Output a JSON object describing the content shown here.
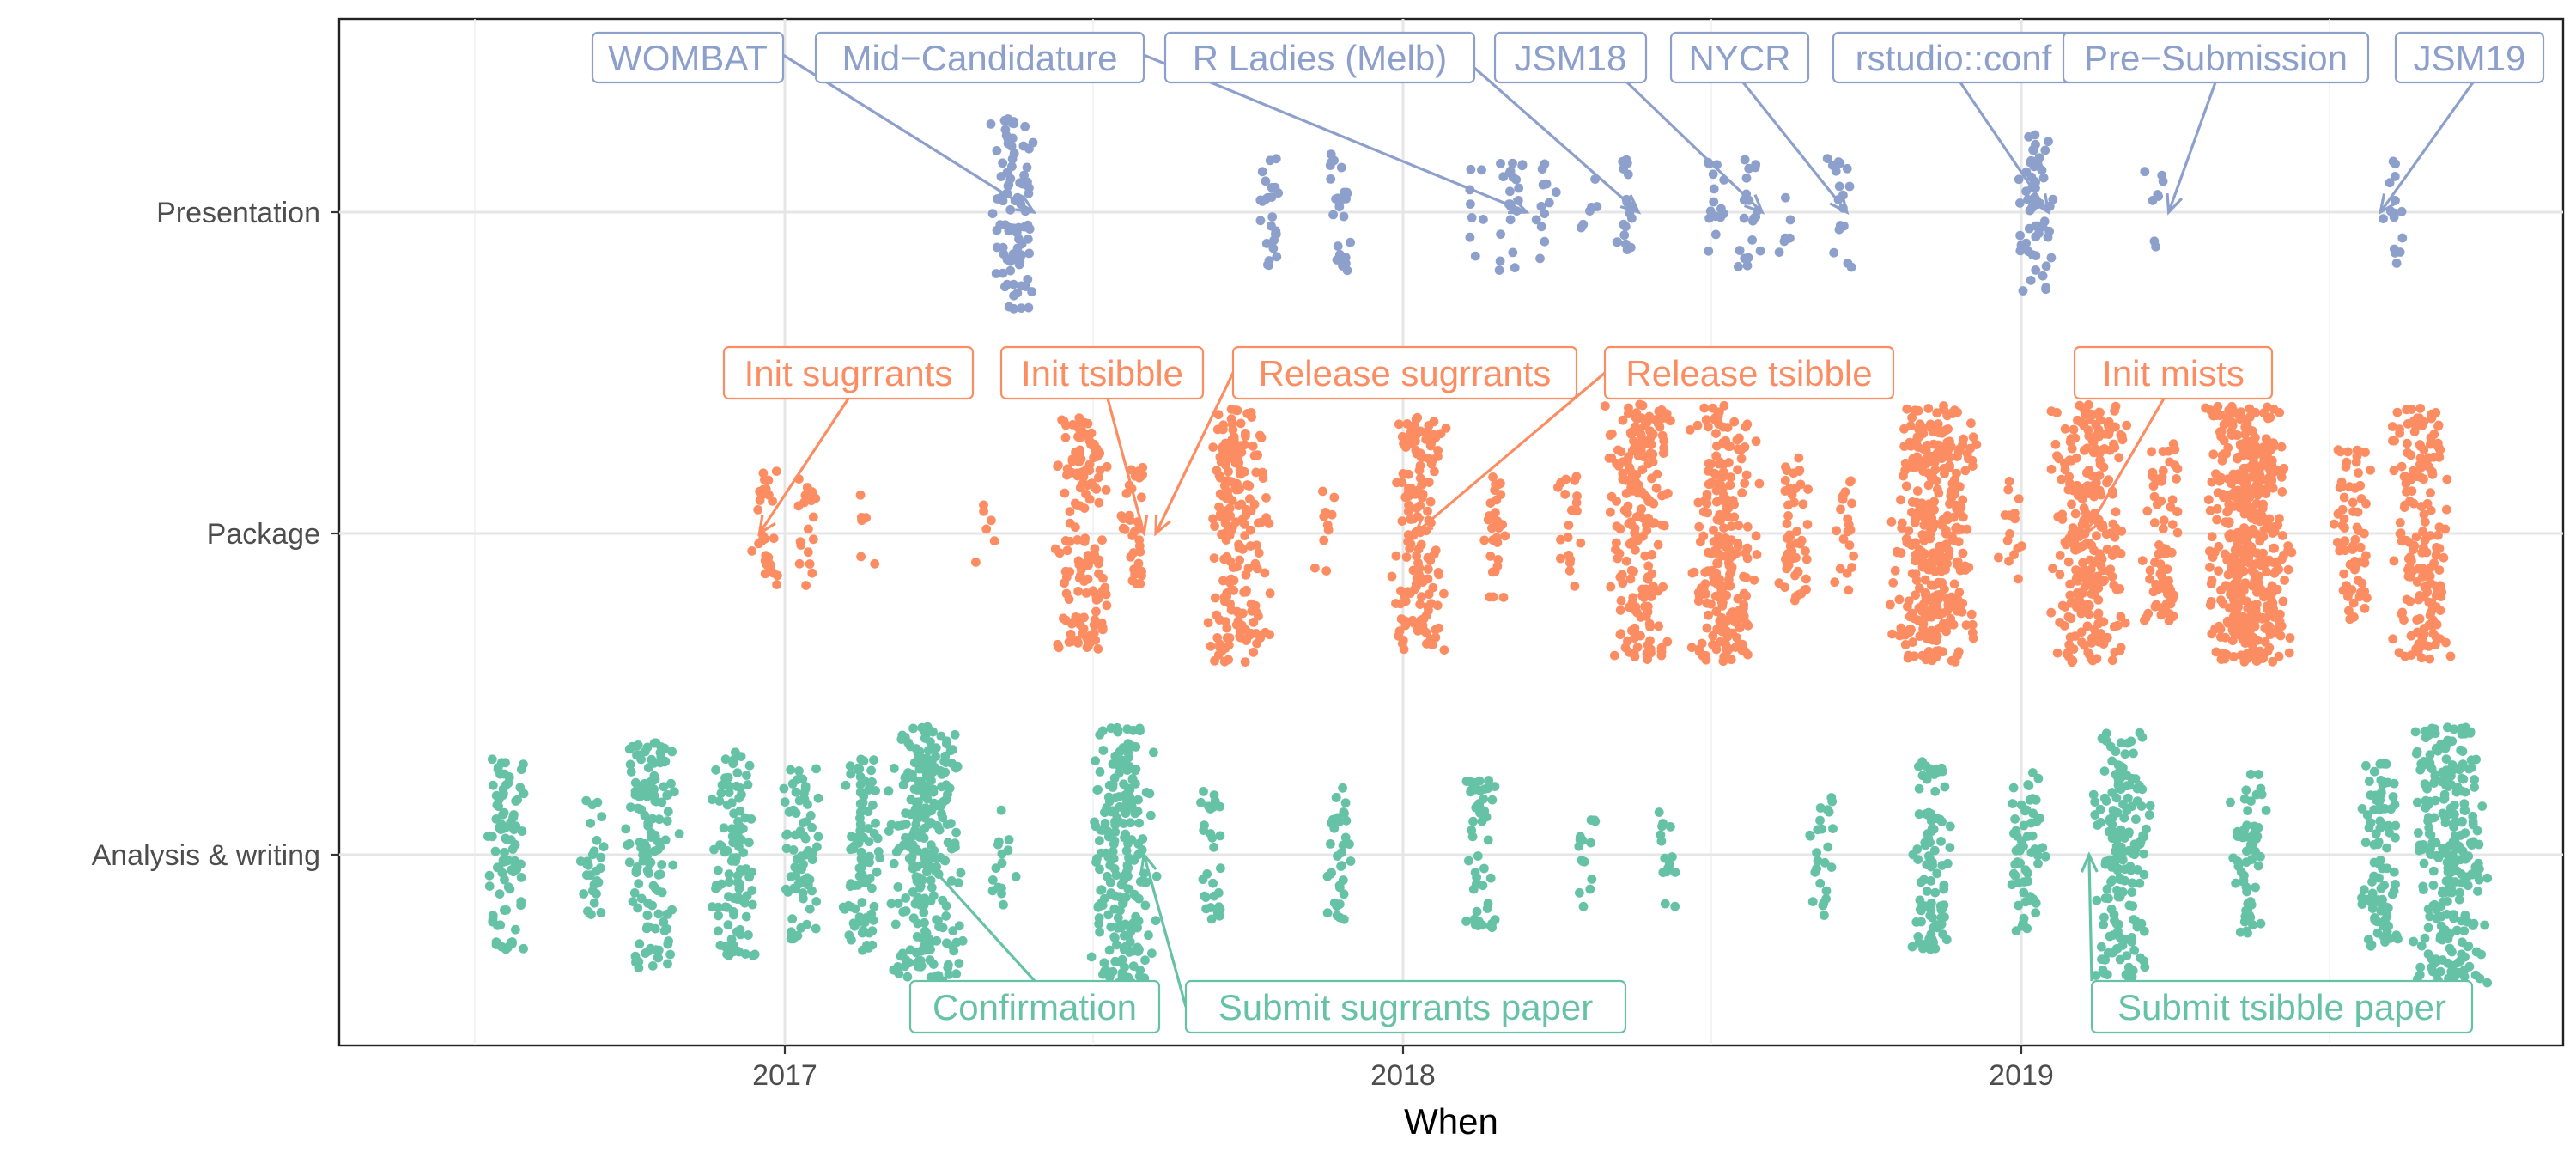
{
  "chart_data": {
    "type": "scatter",
    "xlabel": "When",
    "x_ticks": [
      "2017",
      "2018",
      "2019"
    ],
    "xlim": [
      "2016-04-15",
      "2019-10-15"
    ],
    "categories": [
      "Presentation",
      "Package",
      "Analysis & writing"
    ],
    "grid": true,
    "legend": "none",
    "series": [
      {
        "category": "Presentation",
        "color": "#8DA0CB",
        "clusters": [
          {
            "date": "2017-05-15",
            "count": 95
          },
          {
            "date": "2017-10-15",
            "count": 25
          },
          {
            "date": "2017-11-25",
            "count": 25
          },
          {
            "date": "2018-02-10",
            "count": 8
          },
          {
            "date": "2018-03-05",
            "count": 22
          },
          {
            "date": "2018-03-25",
            "count": 12
          },
          {
            "date": "2018-04-20",
            "count": 6
          },
          {
            "date": "2018-05-15",
            "count": 18
          },
          {
            "date": "2018-07-05",
            "count": 15
          },
          {
            "date": "2018-07-25",
            "count": 20
          },
          {
            "date": "2018-08-15",
            "count": 6
          },
          {
            "date": "2018-09-15",
            "count": 18
          },
          {
            "date": "2019-01-10",
            "count": 60
          },
          {
            "date": "2019-03-20",
            "count": 8
          },
          {
            "date": "2019-08-10",
            "count": 15
          }
        ]
      },
      {
        "category": "Package",
        "color": "#FC8D62",
        "clusters": [
          {
            "date": "2016-12-20",
            "count": 28
          },
          {
            "date": "2017-01-15",
            "count": 18
          },
          {
            "date": "2017-02-20",
            "count": 6
          },
          {
            "date": "2017-05-01",
            "count": 6
          },
          {
            "date": "2017-06-25",
            "count": 150
          },
          {
            "date": "2017-07-25",
            "count": 35
          },
          {
            "date": "2017-09-25",
            "count": 200
          },
          {
            "date": "2017-11-15",
            "count": 10
          },
          {
            "date": "2018-01-10",
            "count": 150
          },
          {
            "date": "2018-02-25",
            "count": 30
          },
          {
            "date": "2018-04-10",
            "count": 20
          },
          {
            "date": "2018-05-20",
            "count": 200
          },
          {
            "date": "2018-07-10",
            "count": 220
          },
          {
            "date": "2018-08-20",
            "count": 50
          },
          {
            "date": "2018-09-20",
            "count": 20
          },
          {
            "date": "2018-11-10",
            "count": 350
          },
          {
            "date": "2018-12-25",
            "count": 15
          },
          {
            "date": "2019-02-10",
            "count": 260
          },
          {
            "date": "2019-03-25",
            "count": 80
          },
          {
            "date": "2019-05-15",
            "count": 450
          },
          {
            "date": "2019-07-15",
            "count": 70
          },
          {
            "date": "2019-08-25",
            "count": 180
          }
        ]
      },
      {
        "category": "Analysis & writing",
        "color": "#66C2A5",
        "clusters": [
          {
            "date": "2016-07-20",
            "count": 90
          },
          {
            "date": "2016-09-10",
            "count": 30
          },
          {
            "date": "2016-10-15",
            "count": 140
          },
          {
            "date": "2016-12-01",
            "count": 110
          },
          {
            "date": "2017-01-10",
            "count": 70
          },
          {
            "date": "2017-02-15",
            "count": 90
          },
          {
            "date": "2017-03-25",
            "count": 260
          },
          {
            "date": "2017-05-10",
            "count": 15
          },
          {
            "date": "2017-07-20",
            "count": 220
          },
          {
            "date": "2017-09-10",
            "count": 30
          },
          {
            "date": "2017-11-25",
            "count": 35
          },
          {
            "date": "2018-02-15",
            "count": 50
          },
          {
            "date": "2018-04-20",
            "count": 15
          },
          {
            "date": "2018-06-05",
            "count": 15
          },
          {
            "date": "2018-09-05",
            "count": 25
          },
          {
            "date": "2018-11-10",
            "count": 90
          },
          {
            "date": "2019-01-05",
            "count": 60
          },
          {
            "date": "2019-03-01",
            "count": 170
          },
          {
            "date": "2019-05-15",
            "count": 60
          },
          {
            "date": "2019-08-01",
            "count": 90
          },
          {
            "date": "2019-09-10",
            "count": 250
          }
        ]
      }
    ],
    "annotations": [
      {
        "category": "Presentation",
        "label": "WOMBAT",
        "date": "2017-05-28"
      },
      {
        "category": "Presentation",
        "label": "Mid−Candidature",
        "date": "2018-03-15"
      },
      {
        "category": "Presentation",
        "label": "R Ladies (Melb)",
        "date": "2018-05-20"
      },
      {
        "category": "Presentation",
        "label": "JSM18",
        "date": "2018-08-01"
      },
      {
        "category": "Presentation",
        "label": "NYCR",
        "date": "2018-09-20"
      },
      {
        "category": "Presentation",
        "label": "rstudio::conf",
        "date": "2019-01-17"
      },
      {
        "category": "Presentation",
        "label": "Pre−Submission",
        "date": "2019-03-29"
      },
      {
        "category": "Presentation",
        "label": "JSM19",
        "date": "2019-08-01"
      },
      {
        "category": "Package",
        "label": "Init sugrrants",
        "date": "2016-12-17"
      },
      {
        "category": "Package",
        "label": "Init tsibble",
        "date": "2017-08-01"
      },
      {
        "category": "Package",
        "label": "Release sugrrants",
        "date": "2017-08-08"
      },
      {
        "category": "Package",
        "label": "Release tsibble",
        "date": "2018-01-08"
      },
      {
        "category": "Package",
        "label": "Init mists",
        "date": "2019-02-08"
      },
      {
        "category": "Analysis & writing",
        "label": "Confirmation",
        "date": "2017-03-22"
      },
      {
        "category": "Analysis & writing",
        "label": "Submit sugrrants paper",
        "date": "2017-08-01"
      },
      {
        "category": "Analysis & writing",
        "label": "Submit tsibble paper",
        "date": "2019-02-10"
      }
    ]
  }
}
